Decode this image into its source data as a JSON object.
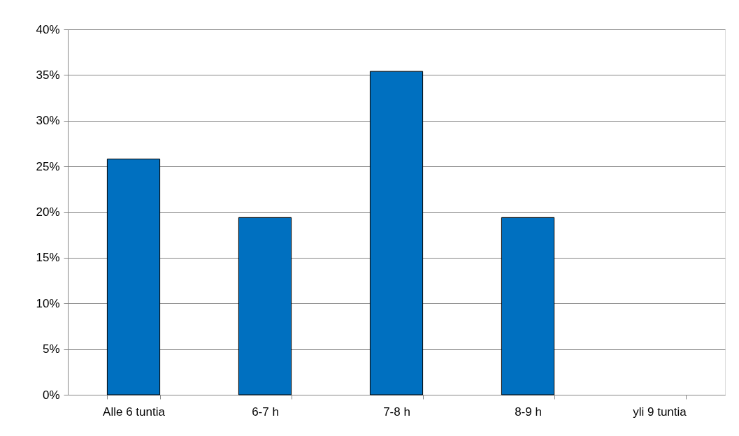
{
  "chart_data": {
    "type": "bar",
    "categories": [
      "Alle 6 tuntia",
      "6-7 h",
      "7-8 h",
      "8-9 h",
      "yli 9 tuntia"
    ],
    "values": [
      25.8,
      19.4,
      35.4,
      19.4,
      0
    ],
    "color": "#0070c0",
    "ylim": [
      0,
      40
    ],
    "yticks": [
      {
        "value": 0,
        "label": "0%"
      },
      {
        "value": 5,
        "label": "5%"
      },
      {
        "value": 10,
        "label": "10%"
      },
      {
        "value": 15,
        "label": "15%"
      },
      {
        "value": 20,
        "label": "20%"
      },
      {
        "value": 25,
        "label": "25%"
      },
      {
        "value": 30,
        "label": "30%"
      },
      {
        "value": 35,
        "label": "35%"
      },
      {
        "value": 40,
        "label": "40%"
      }
    ],
    "grid": "y"
  }
}
